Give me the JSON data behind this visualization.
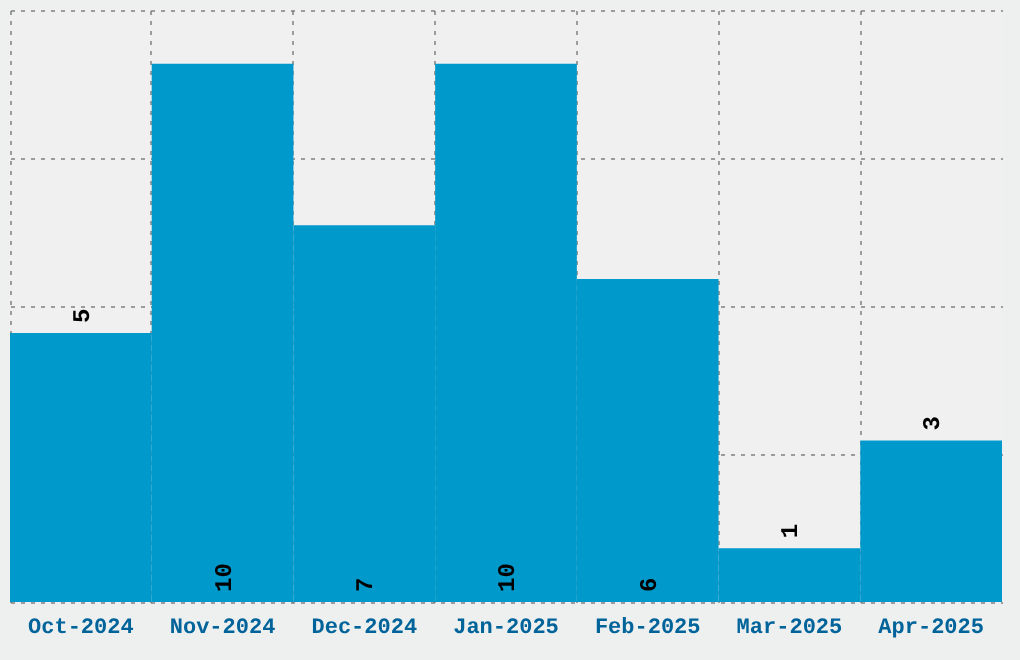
{
  "chart_data": {
    "type": "bar",
    "categories": [
      "Oct-2024",
      "Nov-2024",
      "Dec-2024",
      "Jan-2025",
      "Feb-2025",
      "Mar-2025",
      "Apr-2025"
    ],
    "values": [
      5,
      10,
      7,
      10,
      6,
      1,
      3
    ],
    "color": "#0099cc",
    "ylim": [
      0,
      11
    ],
    "yticks": [
      {
        "value": 0,
        "label": null
      },
      {
        "value": 2.75,
        "label": null
      },
      {
        "value": 5.5,
        "label": null
      },
      {
        "value": 8.25,
        "label": null
      },
      {
        "value": 11,
        "label": null
      }
    ],
    "tick_labels": "x",
    "grid": true,
    "data_labels": true
  }
}
